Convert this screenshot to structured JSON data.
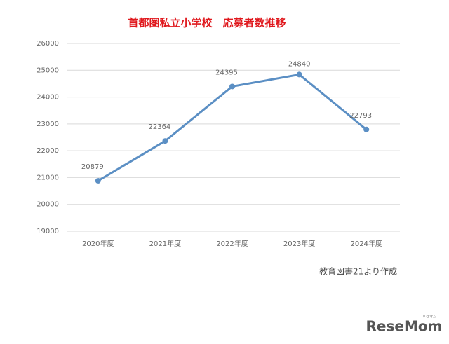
{
  "chart_data": {
    "type": "line",
    "title": "首都圏私立小学校　応募者数推移",
    "categories": [
      "2020年度",
      "2021年度",
      "2022年度",
      "2023年度",
      "2024年度"
    ],
    "values": [
      20879,
      22364,
      24395,
      24840,
      22793
    ],
    "color": "#5b8fc4",
    "ylim": [
      19000,
      26000
    ],
    "yticks": [
      19000,
      20000,
      21000,
      22000,
      23000,
      24000,
      25000,
      26000
    ],
    "grid": true
  },
  "source_note": "教育図書21より作成",
  "logo": "ReseMom",
  "logo_sub": "リセマム"
}
